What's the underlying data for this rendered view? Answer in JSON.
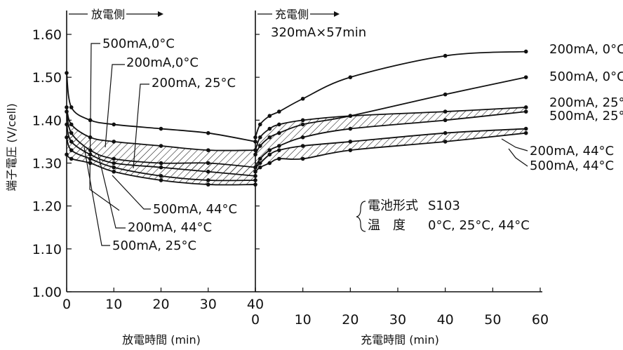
{
  "chart_data": {
    "type": "line",
    "y_axis": {
      "label": "端子電圧 (V/cell)",
      "range": [
        1.0,
        1.65
      ],
      "ticks": [
        1.0,
        1.1,
        1.2,
        1.3,
        1.4,
        1.5,
        1.6
      ],
      "tick_labels": [
        "1.00",
        "1.10",
        "1.20",
        "1.30",
        "1.40",
        "1.50",
        "1.60"
      ]
    },
    "panels": [
      {
        "id": "discharge",
        "header": "放電側",
        "xlabel": "放電時間 (min)",
        "x_range": [
          0,
          40
        ],
        "ticks": [
          0,
          10,
          20,
          30,
          40
        ],
        "tick_labels": [
          "0",
          "10",
          "20",
          "30",
          "40"
        ],
        "series": [
          {
            "name": "500mA, 0°C",
            "x": [
              0,
              1,
              5,
              10,
              20,
              30,
              40
            ],
            "y": [
              1.51,
              1.43,
              1.4,
              1.39,
              1.38,
              1.37,
              1.35
            ]
          },
          {
            "name": "200mA, 0°C",
            "x": [
              0,
              1,
              5,
              10,
              20,
              30,
              40
            ],
            "y": [
              1.43,
              1.39,
              1.36,
              1.35,
              1.34,
              1.33,
              1.33
            ]
          },
          {
            "name": "200mA, 25°C",
            "x": [
              0,
              1,
              5,
              10,
              20,
              30,
              40
            ],
            "y": [
              1.42,
              1.37,
              1.33,
              1.31,
              1.3,
              1.3,
              1.29
            ]
          },
          {
            "name": "500mA, 25°C",
            "x": [
              0,
              1,
              5,
              10,
              20,
              30,
              40
            ],
            "y": [
              1.39,
              1.35,
              1.32,
              1.3,
              1.29,
              1.28,
              1.27
            ]
          },
          {
            "name": "200mA, 44°C",
            "x": [
              0,
              1,
              5,
              10,
              20,
              30,
              40
            ],
            "y": [
              1.36,
              1.33,
              1.31,
              1.29,
              1.27,
              1.26,
              1.26
            ]
          },
          {
            "name": "500mA, 44°C",
            "x": [
              0,
              1,
              5,
              10,
              20,
              30,
              40
            ],
            "y": [
              1.32,
              1.31,
              1.3,
              1.28,
              1.26,
              1.25,
              1.25
            ]
          }
        ]
      },
      {
        "id": "charge",
        "header": "充電側",
        "note_top": "320mA×57min",
        "xlabel": "充電時間 (min)",
        "x_range": [
          0,
          60
        ],
        "ticks": [
          0,
          10,
          20,
          30,
          40,
          50,
          60
        ],
        "tick_labels": [
          "0",
          "10",
          "20",
          "30",
          "40",
          "50",
          "60"
        ],
        "series": [
          {
            "name": "200mA, 0°C",
            "x": [
              0,
              1,
              3,
              5,
              10,
              20,
              40,
              57
            ],
            "y": [
              1.36,
              1.39,
              1.41,
              1.42,
              1.45,
              1.5,
              1.55,
              1.56
            ]
          },
          {
            "name": "500mA, 0°C",
            "x": [
              0,
              1,
              3,
              5,
              10,
              20,
              40,
              57
            ],
            "y": [
              1.32,
              1.34,
              1.36,
              1.37,
              1.39,
              1.41,
              1.46,
              1.5
            ]
          },
          {
            "name": "200mA, 25°C",
            "x": [
              0,
              1,
              3,
              5,
              10,
              20,
              40,
              57
            ],
            "y": [
              1.33,
              1.36,
              1.38,
              1.39,
              1.4,
              1.41,
              1.42,
              1.43
            ]
          },
          {
            "name": "500mA, 25°C",
            "x": [
              0,
              1,
              3,
              5,
              10,
              20,
              40,
              57
            ],
            "y": [
              1.29,
              1.31,
              1.33,
              1.34,
              1.36,
              1.38,
              1.4,
              1.42
            ]
          },
          {
            "name": "200mA, 44°C",
            "x": [
              0,
              1,
              3,
              5,
              10,
              20,
              40,
              57
            ],
            "y": [
              1.29,
              1.3,
              1.32,
              1.33,
              1.34,
              1.35,
              1.37,
              1.38
            ]
          },
          {
            "name": "500mA, 44°C",
            "x": [
              0,
              1,
              3,
              5,
              10,
              20,
              40,
              57
            ],
            "y": [
              1.28,
              1.29,
              1.3,
              1.31,
              1.31,
              1.33,
              1.35,
              1.37
            ]
          }
        ]
      }
    ],
    "legend_box": {
      "lines": [
        {
          "key": "電池形式",
          "value": "S103"
        },
        {
          "key": "温　度",
          "value": "0°C, 25°C, 44°C"
        }
      ]
    },
    "hatched_bands": [
      {
        "panel": "discharge",
        "between": [
          "200mA, 0°C",
          "500mA, 25°C"
        ]
      },
      {
        "panel": "discharge",
        "between": [
          "200mA, 25°C",
          "500mA, 44°C"
        ]
      },
      {
        "panel": "charge",
        "between": [
          "200mA, 25°C",
          "500mA, 25°C"
        ]
      },
      {
        "panel": "charge",
        "between": [
          "200mA, 44°C",
          "500mA, 44°C"
        ]
      }
    ],
    "grid": false,
    "labels": {
      "discharge_labels": [
        "500mA,0°C",
        "200mA,0°C",
        "200mA, 25°C",
        "500mA, 44°C",
        "200mA, 44°C",
        "500mA, 25°C"
      ],
      "charge_labels": [
        "200mA, 0°C",
        "500mA, 0°C",
        "200mA, 25°C",
        "500mA, 25°C",
        "200mA, 44°C",
        "500mA, 44°C"
      ]
    }
  }
}
